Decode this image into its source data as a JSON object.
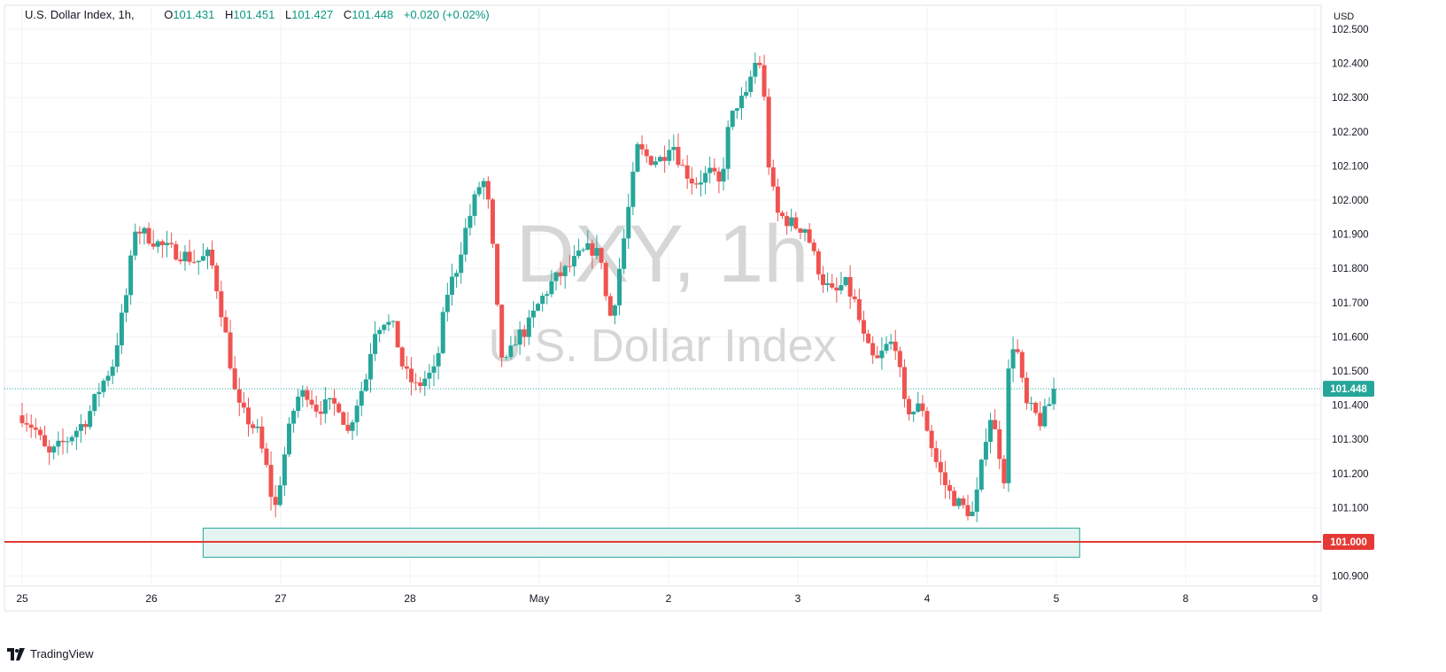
{
  "legend": {
    "symbol": "U.S. Dollar Index, 1h,",
    "open_label": "O",
    "open": "101.431",
    "high_label": "H",
    "high": "101.451",
    "low_label": "L",
    "low": "101.427",
    "close_label": "C",
    "close": "101.448",
    "change": "+0.020 (+0.02%)"
  },
  "footer": {
    "brand": "TradingView",
    "brand_icon": "tradingview-logo-icon"
  },
  "watermark": {
    "line1": "DXY, 1h",
    "line2": "U.S. Dollar Index"
  },
  "colors": {
    "up": "#26a69a",
    "down": "#ef5350",
    "grid": "#f0f3fa",
    "support": "#e53935",
    "zone_fill": "#dff2ee",
    "zone_stroke": "#26a69a",
    "last_price": "#26a69a",
    "axis_text": "#131722",
    "watermark": "#d6d6d6"
  },
  "chart_data": {
    "type": "candlestick",
    "interval": "1h",
    "currency": "USD",
    "ylim": [
      100.87,
      102.52
    ],
    "y_ticks": [
      "102.500",
      "102.400",
      "102.300",
      "102.200",
      "102.100",
      "102.000",
      "101.900",
      "101.800",
      "101.700",
      "101.600",
      "101.500",
      "101.400",
      "101.300",
      "101.200",
      "101.100",
      "100.900"
    ],
    "x_range_days": [
      0,
      11.2
    ],
    "x_ticks": [
      {
        "label": "25",
        "day": 0
      },
      {
        "label": "26",
        "day": 1
      },
      {
        "label": "27",
        "day": 2
      },
      {
        "label": "28",
        "day": 3
      },
      {
        "label": "May",
        "day": 4
      },
      {
        "label": "2",
        "day": 5
      },
      {
        "label": "3",
        "day": 6
      },
      {
        "label": "4",
        "day": 7
      },
      {
        "label": "5",
        "day": 8
      },
      {
        "label": "8",
        "day": 9
      },
      {
        "label": "9",
        "day": 10
      }
    ],
    "last_price": {
      "value": 101.448,
      "label": "101.448"
    },
    "support_line": {
      "value": 101.0,
      "label": "101.000"
    },
    "demand_zone": {
      "y_top": 101.04,
      "y_bottom": 100.955,
      "day_start": 1.4,
      "day_end": 8.18
    },
    "anchors": [
      [
        0.0,
        101.37
      ],
      [
        0.1,
        101.33
      ],
      [
        0.2,
        101.25
      ],
      [
        0.35,
        101.3
      ],
      [
        0.5,
        101.36
      ],
      [
        0.6,
        101.45
      ],
      [
        0.7,
        101.52
      ],
      [
        0.82,
        101.75
      ],
      [
        0.87,
        101.92
      ],
      [
        0.95,
        101.9
      ],
      [
        1.1,
        101.86
      ],
      [
        1.25,
        101.84
      ],
      [
        1.35,
        101.82
      ],
      [
        1.45,
        101.84
      ],
      [
        1.52,
        101.72
      ],
      [
        1.6,
        101.55
      ],
      [
        1.66,
        101.4
      ],
      [
        1.72,
        101.37
      ],
      [
        1.82,
        101.32
      ],
      [
        1.9,
        101.2
      ],
      [
        1.95,
        101.08
      ],
      [
        2.05,
        101.3
      ],
      [
        2.12,
        101.42
      ],
      [
        2.2,
        101.44
      ],
      [
        2.28,
        101.39
      ],
      [
        2.36,
        101.4
      ],
      [
        2.45,
        101.4
      ],
      [
        2.52,
        101.32
      ],
      [
        2.58,
        101.4
      ],
      [
        2.66,
        101.48
      ],
      [
        2.72,
        101.62
      ],
      [
        2.8,
        101.65
      ],
      [
        2.88,
        101.62
      ],
      [
        2.95,
        101.5
      ],
      [
        3.05,
        101.45
      ],
      [
        3.12,
        101.48
      ],
      [
        3.2,
        101.5
      ],
      [
        3.28,
        101.72
      ],
      [
        3.36,
        101.8
      ],
      [
        3.42,
        101.9
      ],
      [
        3.5,
        102.0
      ],
      [
        3.56,
        102.07
      ],
      [
        3.62,
        101.96
      ],
      [
        3.66,
        101.75
      ],
      [
        3.7,
        101.55
      ],
      [
        3.75,
        101.52
      ],
      [
        3.82,
        101.6
      ],
      [
        3.9,
        101.62
      ],
      [
        4.0,
        101.7
      ],
      [
        4.1,
        101.76
      ],
      [
        4.22,
        101.8
      ],
      [
        4.32,
        101.84
      ],
      [
        4.4,
        101.86
      ],
      [
        4.48,
        101.83
      ],
      [
        4.52,
        101.7
      ],
      [
        4.56,
        101.65
      ],
      [
        4.62,
        101.8
      ],
      [
        4.7,
        102.0
      ],
      [
        4.76,
        102.15
      ],
      [
        4.85,
        102.12
      ],
      [
        4.95,
        102.12
      ],
      [
        5.02,
        102.18
      ],
      [
        5.1,
        102.1
      ],
      [
        5.2,
        102.05
      ],
      [
        5.32,
        102.08
      ],
      [
        5.4,
        102.04
      ],
      [
        5.46,
        102.2
      ],
      [
        5.52,
        102.28
      ],
      [
        5.6,
        102.3
      ],
      [
        5.66,
        102.4
      ],
      [
        5.72,
        102.4
      ],
      [
        5.78,
        102.08
      ],
      [
        5.84,
        101.96
      ],
      [
        5.92,
        101.94
      ],
      [
        6.0,
        101.92
      ],
      [
        6.06,
        101.92
      ],
      [
        6.12,
        101.84
      ],
      [
        6.2,
        101.76
      ],
      [
        6.28,
        101.72
      ],
      [
        6.36,
        101.76
      ],
      [
        6.44,
        101.7
      ],
      [
        6.52,
        101.58
      ],
      [
        6.6,
        101.52
      ],
      [
        6.7,
        101.58
      ],
      [
        6.76,
        101.58
      ],
      [
        6.82,
        101.4
      ],
      [
        6.88,
        101.38
      ],
      [
        6.96,
        101.4
      ],
      [
        7.02,
        101.3
      ],
      [
        7.08,
        101.22
      ],
      [
        7.16,
        101.15
      ],
      [
        7.22,
        101.12
      ],
      [
        7.28,
        101.1
      ],
      [
        7.36,
        101.08
      ],
      [
        7.42,
        101.22
      ],
      [
        7.48,
        101.38
      ],
      [
        7.54,
        101.3
      ],
      [
        7.6,
        101.18
      ],
      [
        7.64,
        101.6
      ],
      [
        7.7,
        101.55
      ],
      [
        7.76,
        101.4
      ],
      [
        7.82,
        101.38
      ],
      [
        7.88,
        101.35
      ],
      [
        7.94,
        101.4
      ],
      [
        8.0,
        101.448
      ]
    ]
  }
}
